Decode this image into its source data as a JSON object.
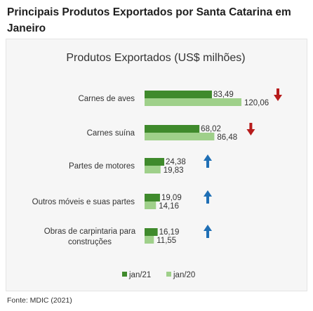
{
  "page_title": "Principais Produtos Exportados por Santa Catarina em Janeiro",
  "source": "Fonte: MDIC (2021)",
  "colors": {
    "jan21": "#3f8a2c",
    "jan20": "#9fd08a",
    "down_arrow": "#b71c1c",
    "up_arrow": "#1f6fb5"
  },
  "chart_data": {
    "type": "bar",
    "orientation": "horizontal",
    "title": "Produtos Exportados (US$ milhões)",
    "categories": [
      "Carnes de aves",
      "Carnes suína",
      "Partes de motores",
      "Outros móveis e suas partes",
      "Obras de carpintaria para construções"
    ],
    "series": [
      {
        "name": "jan/21",
        "values": [
          83.49,
          68.02,
          24.38,
          19.09,
          16.19
        ],
        "labels": [
          "83,49",
          "68,02",
          "24,38",
          "19,09",
          "16,19"
        ]
      },
      {
        "name": "jan/20",
        "values": [
          120.06,
          86.48,
          19.83,
          14.16,
          11.55
        ],
        "labels": [
          "120,06",
          "86,48",
          "19,83",
          "14,16",
          "11,55"
        ]
      }
    ],
    "trend_icons": [
      "arrow-down",
      "arrow-down",
      "arrow-up",
      "arrow-up",
      "arrow-up"
    ],
    "xlim": [
      0,
      130
    ],
    "legend_position": "bottom",
    "grid": false
  }
}
